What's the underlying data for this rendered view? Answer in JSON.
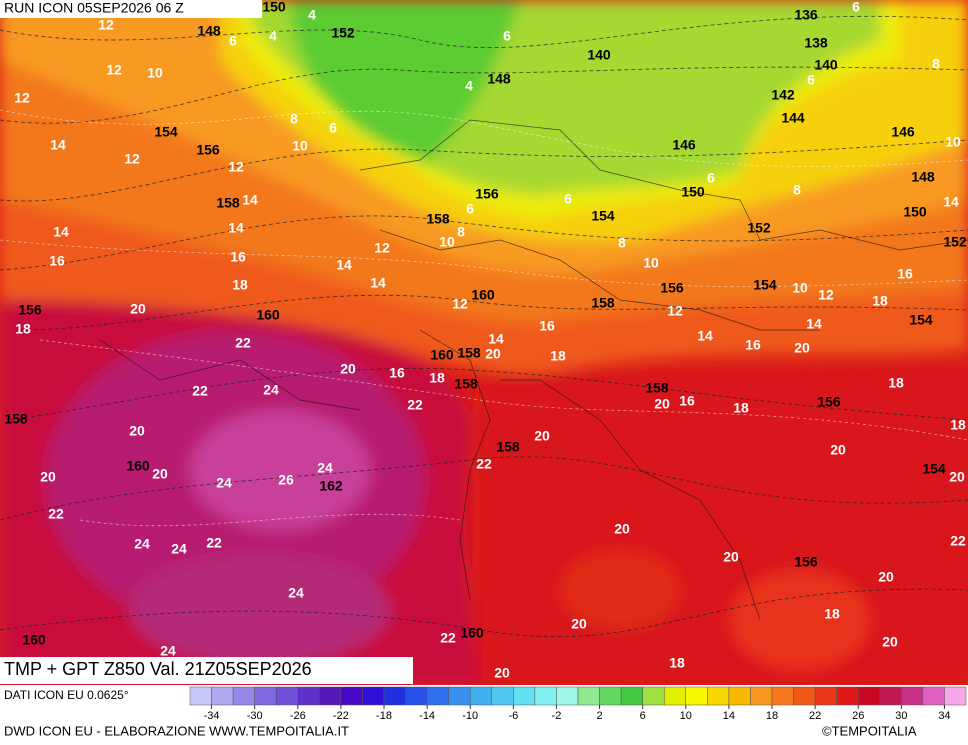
{
  "header": {
    "run": "RUN ICON 05SEP2026 06 Z",
    "field": "TMP + GPT Z850 Val. 21Z05SEP2026"
  },
  "map": {
    "geopotential_labels": [
      150,
      152,
      148,
      136,
      138,
      140,
      140,
      148,
      142,
      144,
      146,
      146,
      154,
      156,
      148,
      150,
      156,
      158,
      158,
      154,
      150,
      152,
      152,
      160,
      158,
      156,
      154,
      156,
      154,
      160,
      160,
      158,
      158,
      158,
      156,
      158,
      158,
      160,
      154,
      162,
      156,
      160,
      160
    ],
    "temperature_labels": [
      4,
      12,
      6,
      4,
      6,
      6,
      12,
      10,
      4,
      12,
      6,
      8,
      8,
      6,
      14,
      12,
      10,
      12,
      10,
      6,
      8,
      14,
      14,
      6,
      6,
      8,
      10,
      14,
      14,
      12,
      8,
      10,
      16,
      16,
      14,
      14,
      18,
      16,
      10,
      12,
      18,
      20,
      12,
      18,
      14,
      16,
      12,
      14,
      14,
      16,
      20,
      22,
      20,
      18,
      16,
      18,
      20,
      18,
      22,
      24,
      22,
      20,
      16,
      18,
      18,
      20,
      20,
      20,
      22,
      24,
      20,
      20,
      24,
      26,
      20,
      22,
      20,
      24,
      24,
      22,
      20,
      22,
      20,
      24,
      18,
      20,
      22,
      20,
      24,
      18,
      20
    ]
  },
  "colorbar": {
    "range": [
      -36,
      36
    ],
    "ticks": [
      -34,
      -30,
      -26,
      -22,
      -18,
      -14,
      -10,
      -6,
      -2,
      2,
      6,
      10,
      14,
      18,
      22,
      26,
      30,
      34
    ],
    "colors": [
      "#c8c8f8",
      "#b0a8f0",
      "#9888e8",
      "#8068e0",
      "#7050d8",
      "#6030c8",
      "#5818b8",
      "#4808c8",
      "#3010d8",
      "#2030e0",
      "#2850e8",
      "#3070f0",
      "#3890f0",
      "#40b0f0",
      "#50c8f0",
      "#60e0f0",
      "#80f0f0",
      "#a0f8e8",
      "#90e890",
      "#60d860",
      "#40c840",
      "#a0e040",
      "#e0f000",
      "#f8f800",
      "#f8d800",
      "#f8b800",
      "#f89820",
      "#f87820",
      "#f05818",
      "#e83818",
      "#e01818",
      "#c80820",
      "#c01850",
      "#c83088",
      "#e060c0",
      "#f8a8e8"
    ]
  },
  "footer": {
    "data_source": "DATI ICON EU 0.0625°",
    "credit": "DWD ICON EU - ELABORAZIONE WWW.TEMPOITALIA.IT",
    "copyright": "©TEMPOITALIA"
  }
}
